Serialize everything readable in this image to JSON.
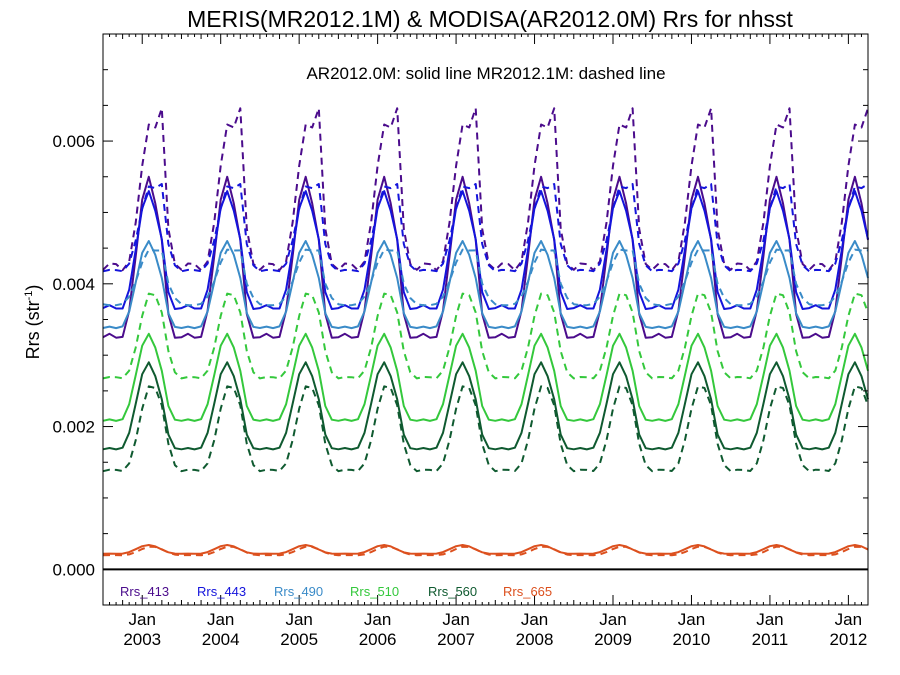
{
  "chart_data": {
    "type": "line",
    "title": "MERIS(MR2012.1M) & MODISA(AR2012.0M)  Rrs for nhsst",
    "annotation": "AR2012.0M: solid line   MR2012.1M: dashed line",
    "ylabel_base": "Rrs (str",
    "ylabel_sup": "-1",
    "ylabel_close": ")",
    "ylim": [
      -0.0005,
      0.0075
    ],
    "xlim": [
      2002.5,
      2012.25
    ],
    "yticks": [
      0.0,
      0.002,
      0.004,
      0.006
    ],
    "ytick_labels": [
      "0.000",
      "0.002",
      "0.004",
      "0.006"
    ],
    "xticks": [
      {
        "x": 2003,
        "top": "Jan",
        "bottom": "2003"
      },
      {
        "x": 2004,
        "top": "Jan",
        "bottom": "2004"
      },
      {
        "x": 2005,
        "top": "Jan",
        "bottom": "2005"
      },
      {
        "x": 2006,
        "top": "Jan",
        "bottom": "2006"
      },
      {
        "x": 2007,
        "top": "Jan",
        "bottom": "2007"
      },
      {
        "x": 2008,
        "top": "Jan",
        "bottom": "2008"
      },
      {
        "x": 2009,
        "top": "Jan",
        "bottom": "2009"
      },
      {
        "x": 2010,
        "top": "Jan",
        "bottom": "2010"
      },
      {
        "x": 2011,
        "top": "Jan",
        "bottom": "2011"
      },
      {
        "x": 2012,
        "top": "Jan",
        "bottom": "2012"
      }
    ],
    "zero_line": true,
    "grid": false,
    "legend_placement": "bottom",
    "series": [
      {
        "name": "Rrs_413",
        "color": "#4b0c8c",
        "solid": {
          "base": 0.004,
          "amp": 0.0011,
          "amp2": 0.0004,
          "phase": 0.08,
          "spike": 0.0003
        },
        "dashed": {
          "base": 0.0049,
          "amp": 0.001,
          "amp2": 0.0004,
          "phase": 0.12,
          "spike": 0.0009
        }
      },
      {
        "name": "Rrs_443",
        "color": "#1414dc",
        "solid": {
          "base": 0.0042,
          "amp": 0.0008,
          "amp2": 0.0003,
          "phase": 0.08,
          "spike": 0.0002
        },
        "dashed": {
          "base": 0.0046,
          "amp": 0.0006,
          "amp2": 0.0002,
          "phase": 0.12,
          "spike": 0.0004
        }
      },
      {
        "name": "Rrs_490",
        "color": "#3a8bc8",
        "solid": {
          "base": 0.0038,
          "amp": 0.0006,
          "amp2": 0.0002,
          "phase": 0.08,
          "spike": 0.0001
        },
        "dashed": {
          "base": 0.004,
          "amp": 0.0004,
          "amp2": 0.0001,
          "phase": 0.12,
          "spike": 0.0002
        }
      },
      {
        "name": "Rrs_510",
        "color": "#34c83c",
        "solid": {
          "base": 0.0025,
          "amp": 0.0006,
          "amp2": 0.0002,
          "phase": 0.08,
          "spike": 0.0001
        },
        "dashed": {
          "base": 0.0031,
          "amp": 0.0006,
          "amp2": 0.0002,
          "phase": 0.12,
          "spike": 0.0001
        }
      },
      {
        "name": "Rrs_560",
        "color": "#0f5a30",
        "solid": {
          "base": 0.0021,
          "amp": 0.0006,
          "amp2": 0.0002,
          "phase": 0.08,
          "spike": 0.0001
        },
        "dashed": {
          "base": 0.0018,
          "amp": 0.0006,
          "amp2": 0.0002,
          "phase": 0.12,
          "spike": 0.0001
        }
      },
      {
        "name": "Rrs_665",
        "color": "#dc501e",
        "solid": {
          "base": 0.00026,
          "amp": 6e-05,
          "amp2": 2e-05,
          "phase": 0.08,
          "spike": 0.0
        },
        "dashed": {
          "base": 0.00024,
          "amp": 6e-05,
          "amp2": 2e-05,
          "phase": 0.12,
          "spike": 0.0
        }
      }
    ]
  }
}
